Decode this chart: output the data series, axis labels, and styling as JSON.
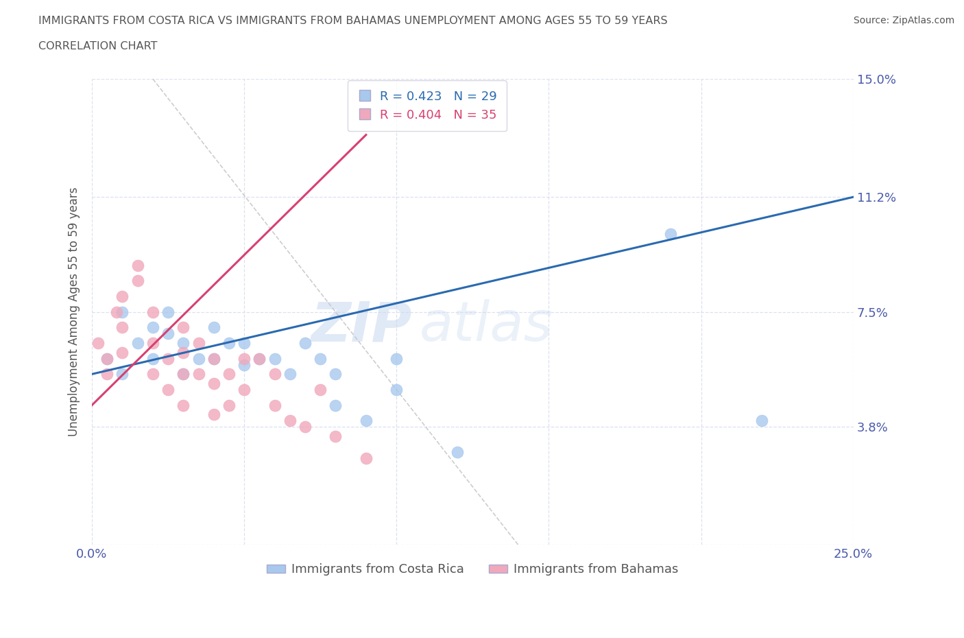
{
  "title_line1": "IMMIGRANTS FROM COSTA RICA VS IMMIGRANTS FROM BAHAMAS UNEMPLOYMENT AMONG AGES 55 TO 59 YEARS",
  "title_line2": "CORRELATION CHART",
  "source_text": "Source: ZipAtlas.com",
  "ylabel": "Unemployment Among Ages 55 to 59 years",
  "xlim": [
    0.0,
    0.25
  ],
  "ylim": [
    0.0,
    0.15
  ],
  "ytick_positions": [
    0.0,
    0.038,
    0.075,
    0.112,
    0.15
  ],
  "yticklabels": [
    "",
    "3.8%",
    "7.5%",
    "11.2%",
    "15.0%"
  ],
  "legend_r_blue": "R = 0.423",
  "legend_n_blue": "N = 29",
  "legend_r_pink": "R = 0.404",
  "legend_n_pink": "N = 35",
  "watermark_1": "ZIP",
  "watermark_2": "atlas",
  "blue_scatter_x": [
    0.005,
    0.01,
    0.01,
    0.015,
    0.02,
    0.02,
    0.025,
    0.025,
    0.03,
    0.03,
    0.035,
    0.04,
    0.04,
    0.045,
    0.05,
    0.05,
    0.055,
    0.06,
    0.065,
    0.07,
    0.075,
    0.08,
    0.08,
    0.09,
    0.1,
    0.1,
    0.12,
    0.19,
    0.22
  ],
  "blue_scatter_y": [
    0.06,
    0.075,
    0.055,
    0.065,
    0.07,
    0.06,
    0.075,
    0.068,
    0.065,
    0.055,
    0.06,
    0.07,
    0.06,
    0.065,
    0.065,
    0.058,
    0.06,
    0.06,
    0.055,
    0.065,
    0.06,
    0.045,
    0.055,
    0.04,
    0.05,
    0.06,
    0.03,
    0.1,
    0.04
  ],
  "pink_scatter_x": [
    0.002,
    0.005,
    0.005,
    0.008,
    0.01,
    0.01,
    0.01,
    0.015,
    0.015,
    0.02,
    0.02,
    0.02,
    0.025,
    0.025,
    0.03,
    0.03,
    0.03,
    0.03,
    0.035,
    0.035,
    0.04,
    0.04,
    0.04,
    0.045,
    0.045,
    0.05,
    0.05,
    0.055,
    0.06,
    0.06,
    0.065,
    0.07,
    0.075,
    0.08,
    0.09
  ],
  "pink_scatter_y": [
    0.065,
    0.06,
    0.055,
    0.075,
    0.08,
    0.07,
    0.062,
    0.09,
    0.085,
    0.075,
    0.065,
    0.055,
    0.06,
    0.05,
    0.07,
    0.062,
    0.055,
    0.045,
    0.065,
    0.055,
    0.06,
    0.052,
    0.042,
    0.055,
    0.045,
    0.06,
    0.05,
    0.06,
    0.055,
    0.045,
    0.04,
    0.038,
    0.05,
    0.035,
    0.028
  ],
  "blue_color": "#a8c8ee",
  "pink_color": "#f0a8bc",
  "blue_line_color": "#2a6ab0",
  "pink_line_color": "#d84070",
  "ref_line_color": "#c8c8c8",
  "title_color": "#555555",
  "tick_label_color": "#4a5aaa",
  "background_color": "#ffffff",
  "grid_color": "#dde0f0",
  "blue_line_x_start": 0.0,
  "blue_line_y_start": 0.055,
  "blue_line_x_end": 0.25,
  "blue_line_y_end": 0.112,
  "pink_line_x_start": 0.0,
  "pink_line_y_start": 0.045,
  "pink_line_x_end": 0.09,
  "pink_line_y_end": 0.132,
  "ref_line_x_start": 0.02,
  "ref_line_y_start": 0.15,
  "ref_line_x_end": 0.14,
  "ref_line_y_end": 0.0
}
